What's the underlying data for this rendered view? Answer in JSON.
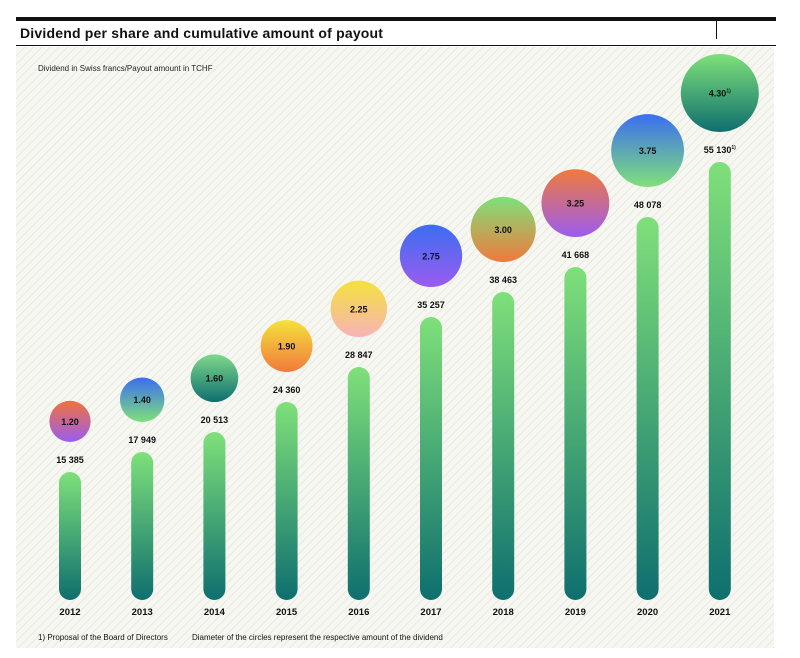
{
  "header": {
    "title": "Dividend per share and cumulative amount of payout",
    "subtitle": "Dividend in Swiss francs/Payout amount in TCHF"
  },
  "footer": {
    "footnote_number": "1)",
    "footnote_text": "Proposal of the Board of Directors",
    "note": "Diameter of the circles represent the respective amount of the dividend"
  },
  "chart_data": {
    "type": "bar",
    "title": "Dividend per share and cumulative amount of payout",
    "subtitle": "Dividend in Swiss francs/Payout amount in TCHF",
    "categories": [
      "2012",
      "2013",
      "2014",
      "2015",
      "2016",
      "2017",
      "2018",
      "2019",
      "2020",
      "2021"
    ],
    "series": [
      {
        "name": "Payout amount in TCHF",
        "values": [
          15385,
          17949,
          20513,
          24360,
          28847,
          35257,
          38463,
          41668,
          48078,
          55130
        ],
        "labels": [
          "15 385",
          "17 949",
          "20 513",
          "24 360",
          "28 847",
          "35 257",
          "38 463",
          "41 668",
          "48 078",
          "55 130"
        ],
        "footnote_marks": [
          "",
          "",
          "",
          "",
          "",
          "",
          "",
          "",
          "",
          "1)"
        ]
      },
      {
        "name": "Dividend in Swiss francs",
        "values": [
          1.2,
          1.4,
          1.6,
          1.9,
          2.25,
          2.75,
          3.0,
          3.25,
          3.75,
          4.3
        ],
        "labels": [
          "1.20",
          "1.40",
          "1.60",
          "1.90",
          "2.25",
          "2.75",
          "3.00",
          "3.25",
          "3.75",
          "4.30"
        ],
        "footnote_marks": [
          "",
          "",
          "",
          "",
          "",
          "",
          "",
          "",
          "",
          "1)"
        ]
      }
    ],
    "circle_gradients": [
      [
        "#f0733d",
        "#9b5cf0"
      ],
      [
        "#3b6ef0",
        "#7fe07a"
      ],
      [
        "#7ed88a",
        "#0e6f6f"
      ],
      [
        "#f4e23c",
        "#f07a3c"
      ],
      [
        "#f4e23c",
        "#f7b2b8"
      ],
      [
        "#3b6ef0",
        "#9b5cf0"
      ],
      [
        "#7fe07a",
        "#f07a3c"
      ],
      [
        "#f07a3c",
        "#9b5cf0"
      ],
      [
        "#3b6ef0",
        "#7fe07a"
      ],
      [
        "#7fe07a",
        "#0e6f6f"
      ]
    ],
    "bar_gradient": [
      "#7fe07a",
      "#0e6f6f"
    ],
    "ylim": [
      0,
      55130
    ],
    "grid": false,
    "legend": "none"
  }
}
